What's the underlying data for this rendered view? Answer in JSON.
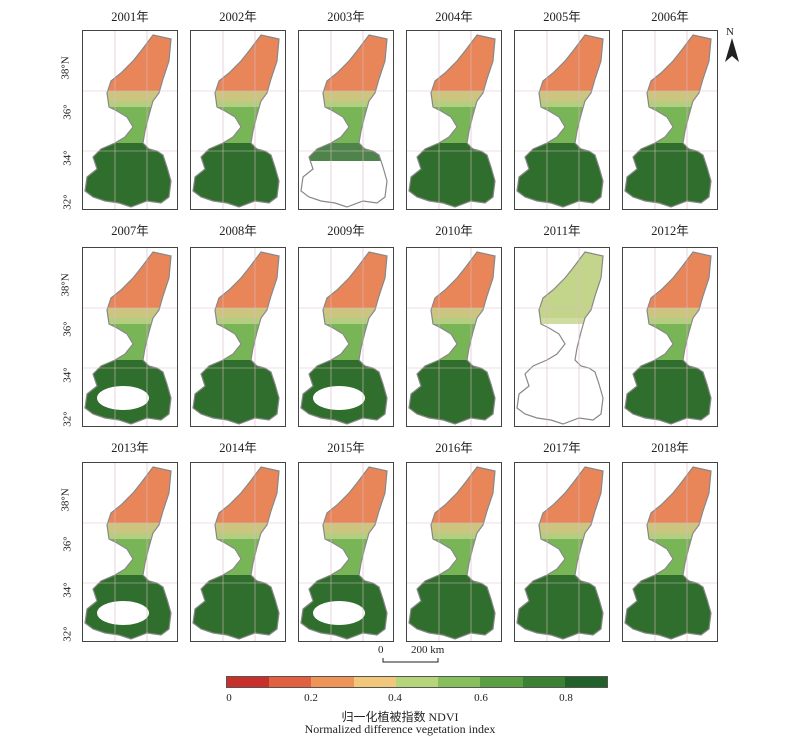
{
  "years": [
    "2001年",
    "2002年",
    "2003年",
    "2004年",
    "2005年",
    "2006年",
    "2007年",
    "2008年",
    "2009年",
    "2010年",
    "2011年",
    "2012年",
    "2013年",
    "2014年",
    "2015年",
    "2016年",
    "2017年",
    "2018年"
  ],
  "latitude_labels": [
    "38°N",
    "36°",
    "34°",
    "32°"
  ],
  "north_arrow": {
    "letter": "N",
    "icon": "north-arrow-icon"
  },
  "scale_bar": {
    "zero": "0",
    "length": "200 km"
  },
  "legend": {
    "colors": [
      "#c8302c",
      "#e0603f",
      "#ee9457",
      "#f0c77b",
      "#b6d47a",
      "#86bf5c",
      "#5aa043",
      "#3a8232",
      "#23612a"
    ],
    "ticks": [
      "0",
      "0.2",
      "0.4",
      "0.6",
      "0.8"
    ],
    "title_cn": "归一化植被指数 NDVI",
    "title_en": "Normalized difference vegetation index"
  },
  "panel_colors": {
    "north": "#e8865a",
    "north_mix": "#c3d58a",
    "middle": "#78b556",
    "south": "#2f6e2c",
    "nodata": "#ffffff",
    "outline": "#888888"
  }
}
